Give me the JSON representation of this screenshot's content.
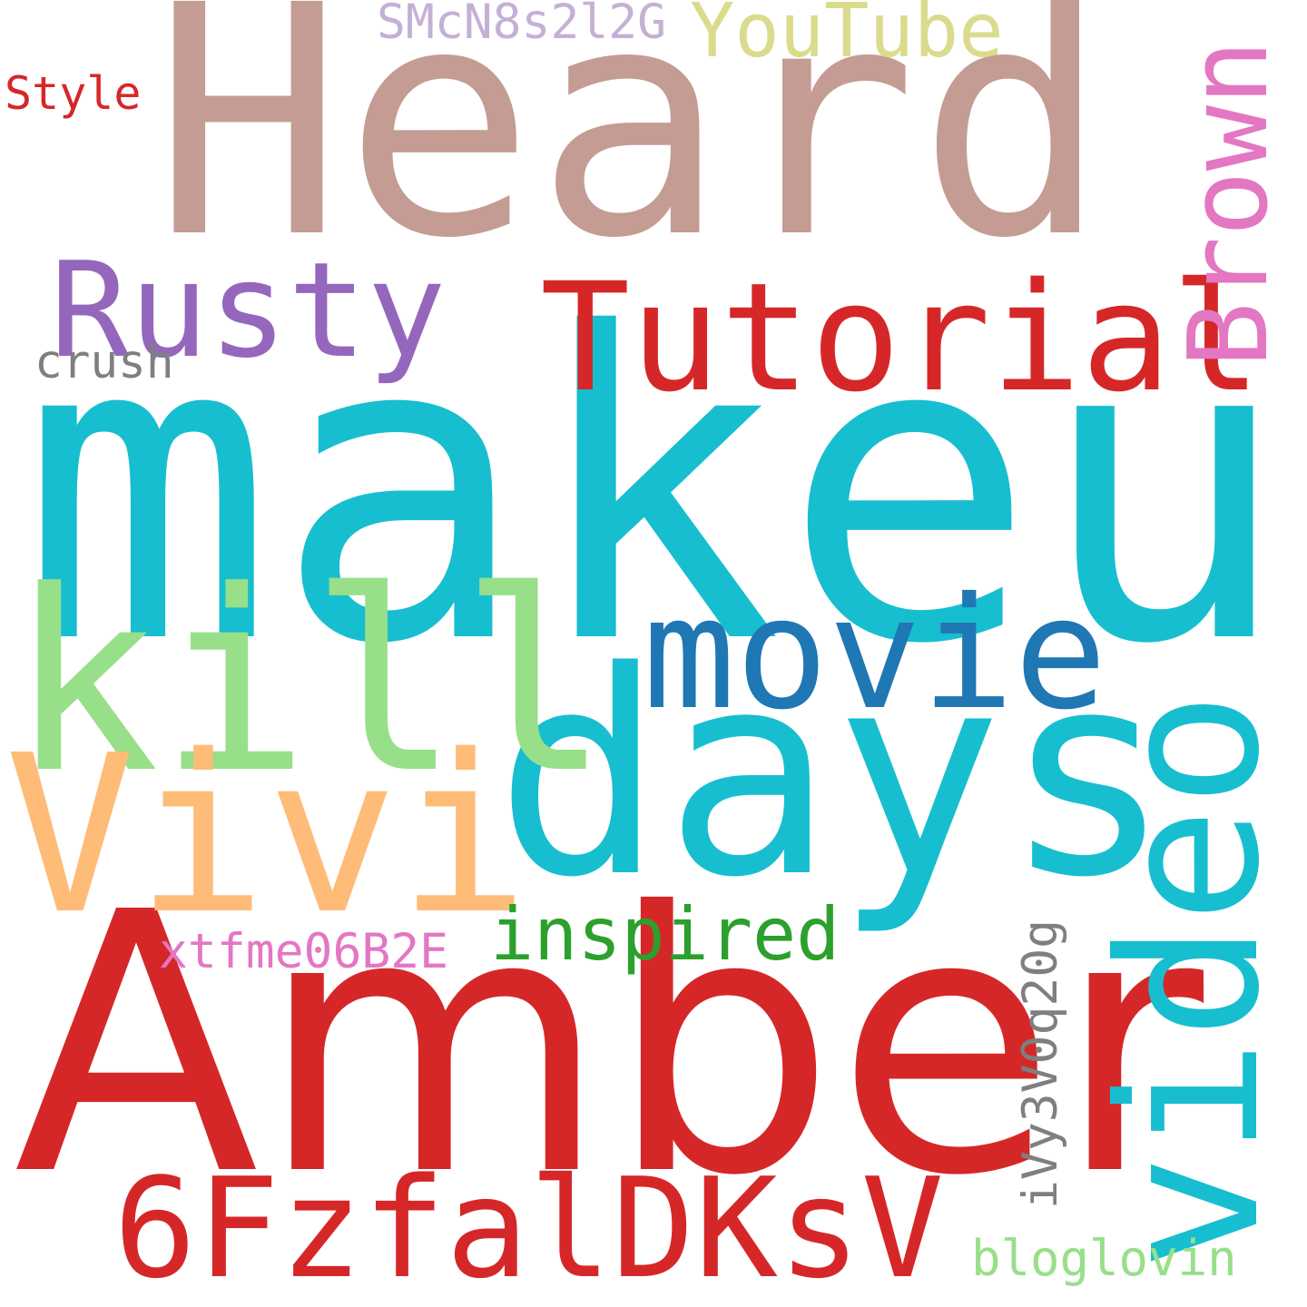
{
  "words": {
    "heard": {
      "text": "Heard",
      "color": "#c49c94"
    },
    "makeup": {
      "text": "makeup",
      "color": "#17becf"
    },
    "amber": {
      "text": "Amber",
      "color": "#d62728"
    },
    "days": {
      "text": "days",
      "color": "#17becf"
    },
    "kill": {
      "text": "kill",
      "color": "#98df8a"
    },
    "video": {
      "text": "video",
      "color": "#17becf"
    },
    "vivi": {
      "text": "Vivi",
      "color": "#ffbb78"
    },
    "tutorial": {
      "text": "Tutorial",
      "color": "#d62728"
    },
    "movie": {
      "text": "movie",
      "color": "#1f77b4"
    },
    "sixfz": {
      "text": "6FzfalDKsV",
      "color": "#d62728"
    },
    "rusty": {
      "text": "Rusty",
      "color": "#9467bd"
    },
    "brown": {
      "text": "Brown",
      "color": "#e377c2"
    },
    "youtube": {
      "text": "YouTube",
      "color": "#dbdb8d"
    },
    "inspired": {
      "text": "inspired",
      "color": "#2ca02c"
    },
    "ivy": {
      "text": "iVy3V0q20g",
      "color": "#7f7f7f"
    },
    "xtfme": {
      "text": "xtfme06B2E",
      "color": "#e377c2"
    },
    "smcn": {
      "text": "SMcN8s2l2G",
      "color": "#c5b0d5"
    },
    "bloglovin": {
      "text": "bloglovin",
      "color": "#98df8a"
    },
    "style": {
      "text": "Style",
      "color": "#d62728"
    },
    "crush": {
      "text": "crush",
      "color": "#7f7f7f"
    }
  }
}
